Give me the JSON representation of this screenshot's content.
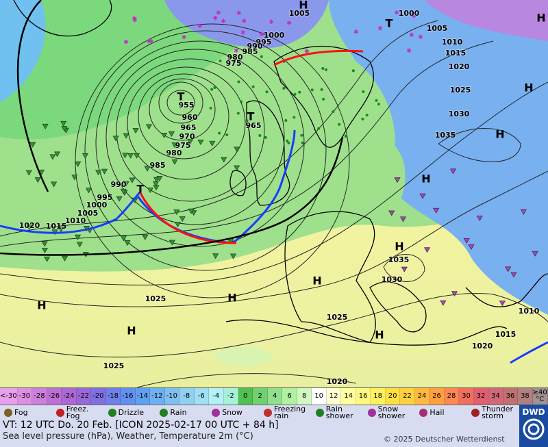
{
  "map": {
    "isobar_labels": [
      "1005",
      "1000",
      "1000",
      "995",
      "990",
      "985",
      "980",
      "975",
      "1005",
      "1010",
      "1015",
      "1020",
      "1025",
      "1030",
      "1035",
      "955",
      "960",
      "965",
      "970",
      "975",
      "980",
      "985",
      "965",
      "990",
      "995",
      "1000",
      "1005",
      "1010",
      "1015",
      "1020",
      "1035",
      "1030",
      "1025",
      "1025",
      "1010",
      "1015",
      "1020",
      "1025",
      "1020"
    ],
    "centers": [
      "T",
      "T",
      "T",
      "T",
      "H",
      "H",
      "H",
      "H",
      "H",
      "H",
      "H",
      "H",
      "H",
      "H",
      "H"
    ]
  },
  "scale": {
    "labels": [
      "<-30",
      -30,
      -28,
      -26,
      -24,
      -22,
      -20,
      -18,
      -16,
      -14,
      -12,
      -10,
      -8,
      -6,
      -4,
      -2,
      0,
      2,
      4,
      6,
      8,
      10,
      12,
      14,
      16,
      18,
      20,
      22,
      24,
      26,
      28,
      30,
      32,
      34,
      36,
      38,
      "≥40 °C"
    ],
    "colors": [
      "#e8a0ec",
      "#dc90e4",
      "#cc80dc",
      "#bc70d4",
      "#ac68d4",
      "#9868d8",
      "#8070e0",
      "#7080e8",
      "#6090f0",
      "#60a0f0",
      "#70b0f0",
      "#80c0f0",
      "#90d0f0",
      "#a0e0f4",
      "#b4f0f4",
      "#a8f0d8",
      "#50c050",
      "#70d070",
      "#90e090",
      "#b0f0a0",
      "#d0f8c0",
      "#ffffff",
      "#ffffd0",
      "#ffffa0",
      "#fff880",
      "#fff060",
      "#ffe040",
      "#ffd040",
      "#ffb840",
      "#ffa040",
      "#ff8850",
      "#f07060",
      "#e06070",
      "#d06878",
      "#c07070",
      "#b08080",
      "#a09090"
    ]
  },
  "weather_legend": [
    "Fog",
    "Freez. Fog",
    "Drizzle",
    "Rain",
    "Snow",
    "Freezing rain",
    "Rain shower",
    "Snow shower",
    "Hail",
    "Thunder storm"
  ],
  "footer": {
    "valid_time": "VT: 12 UTC Do.  20 Feb. [ICON 2025-02-17  00 UTC + 84 h]",
    "description": "Sea level pressure (hPa), Weather, Temperature 2m (°C)",
    "copyright": "© 2025 Deutscher Wetterdienst",
    "logo": "DWD"
  }
}
